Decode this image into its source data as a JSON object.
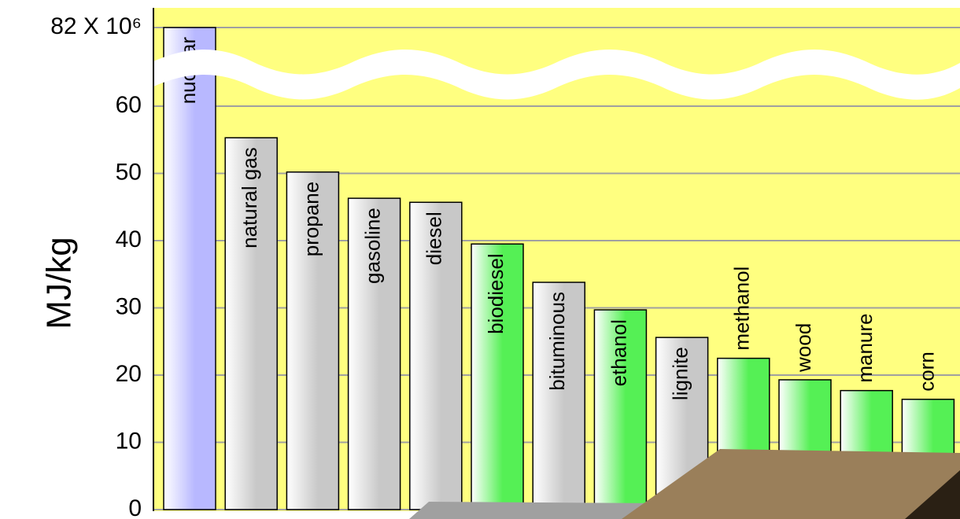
{
  "chart_data": {
    "type": "bar",
    "y_label": "MJ/kg",
    "categories": [
      "nuclear",
      "natural gas",
      "propane",
      "gasoline",
      "diesel",
      "biodiesel",
      "bituminous",
      "ethanol",
      "lignite",
      "methanol",
      "wood",
      "manure",
      "corn"
    ],
    "values": [
      82000000,
      55.3,
      50.2,
      46.3,
      45.7,
      39.5,
      33.8,
      29.7,
      25.6,
      22.5,
      19.3,
      17.7,
      16.4
    ],
    "colors": [
      "#b8b8ff",
      "#c8c8c8",
      "#c8c8c8",
      "#c8c8c8",
      "#c8c8c8",
      "#55f055",
      "#c8c8c8",
      "#55f055",
      "#c8c8c8",
      "#55f055",
      "#55f055",
      "#55f055",
      "#55f055"
    ],
    "ylim": [
      0,
      82000000
    ],
    "yticks": [
      0,
      10,
      20,
      30,
      40,
      50,
      60,
      {
        "value": 82000000,
        "label": "82 X 10⁶"
      }
    ],
    "axis_break": true,
    "grid": true,
    "background": "#ffff80"
  }
}
